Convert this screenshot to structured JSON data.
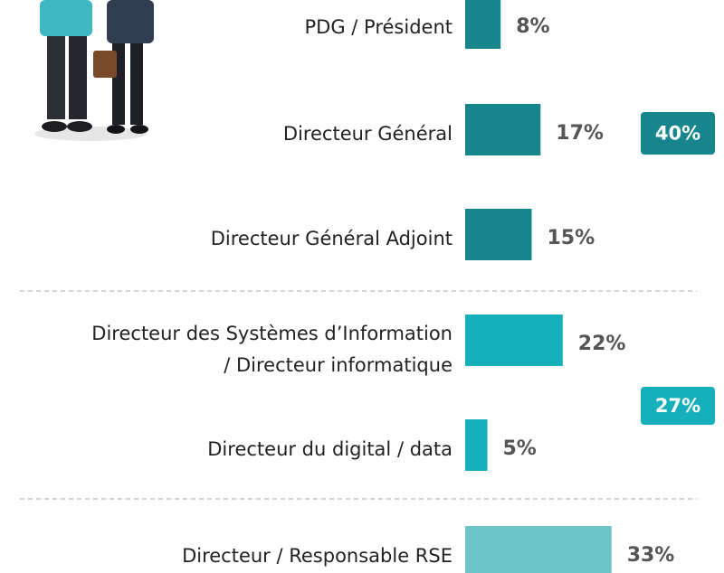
{
  "chart_data": {
    "type": "bar",
    "series": [
      {
        "color": "#17868c",
        "categories": [
          "PDG / Président",
          "Directeur Général",
          "Directeur Général Adjoint"
        ],
        "values": [
          8,
          17,
          15
        ],
        "value_labels": [
          "8%",
          "17%",
          "15%"
        ],
        "total": 40,
        "total_label": "40%"
      },
      {
        "color": "#15b0bb",
        "categories": [
          [
            "Directeur des Systèmes d’Information",
            "/ Directeur informatique"
          ],
          "Directeur du digital / data"
        ],
        "values": [
          22,
          5
        ],
        "value_labels": [
          "22%",
          "5%"
        ],
        "total": 27,
        "total_label": "27%"
      },
      {
        "color": "#6cc5c7",
        "categories": [
          "Directeur / Responsable RSE"
        ],
        "values": [
          33
        ],
        "value_labels": [
          "33%"
        ]
      }
    ]
  }
}
